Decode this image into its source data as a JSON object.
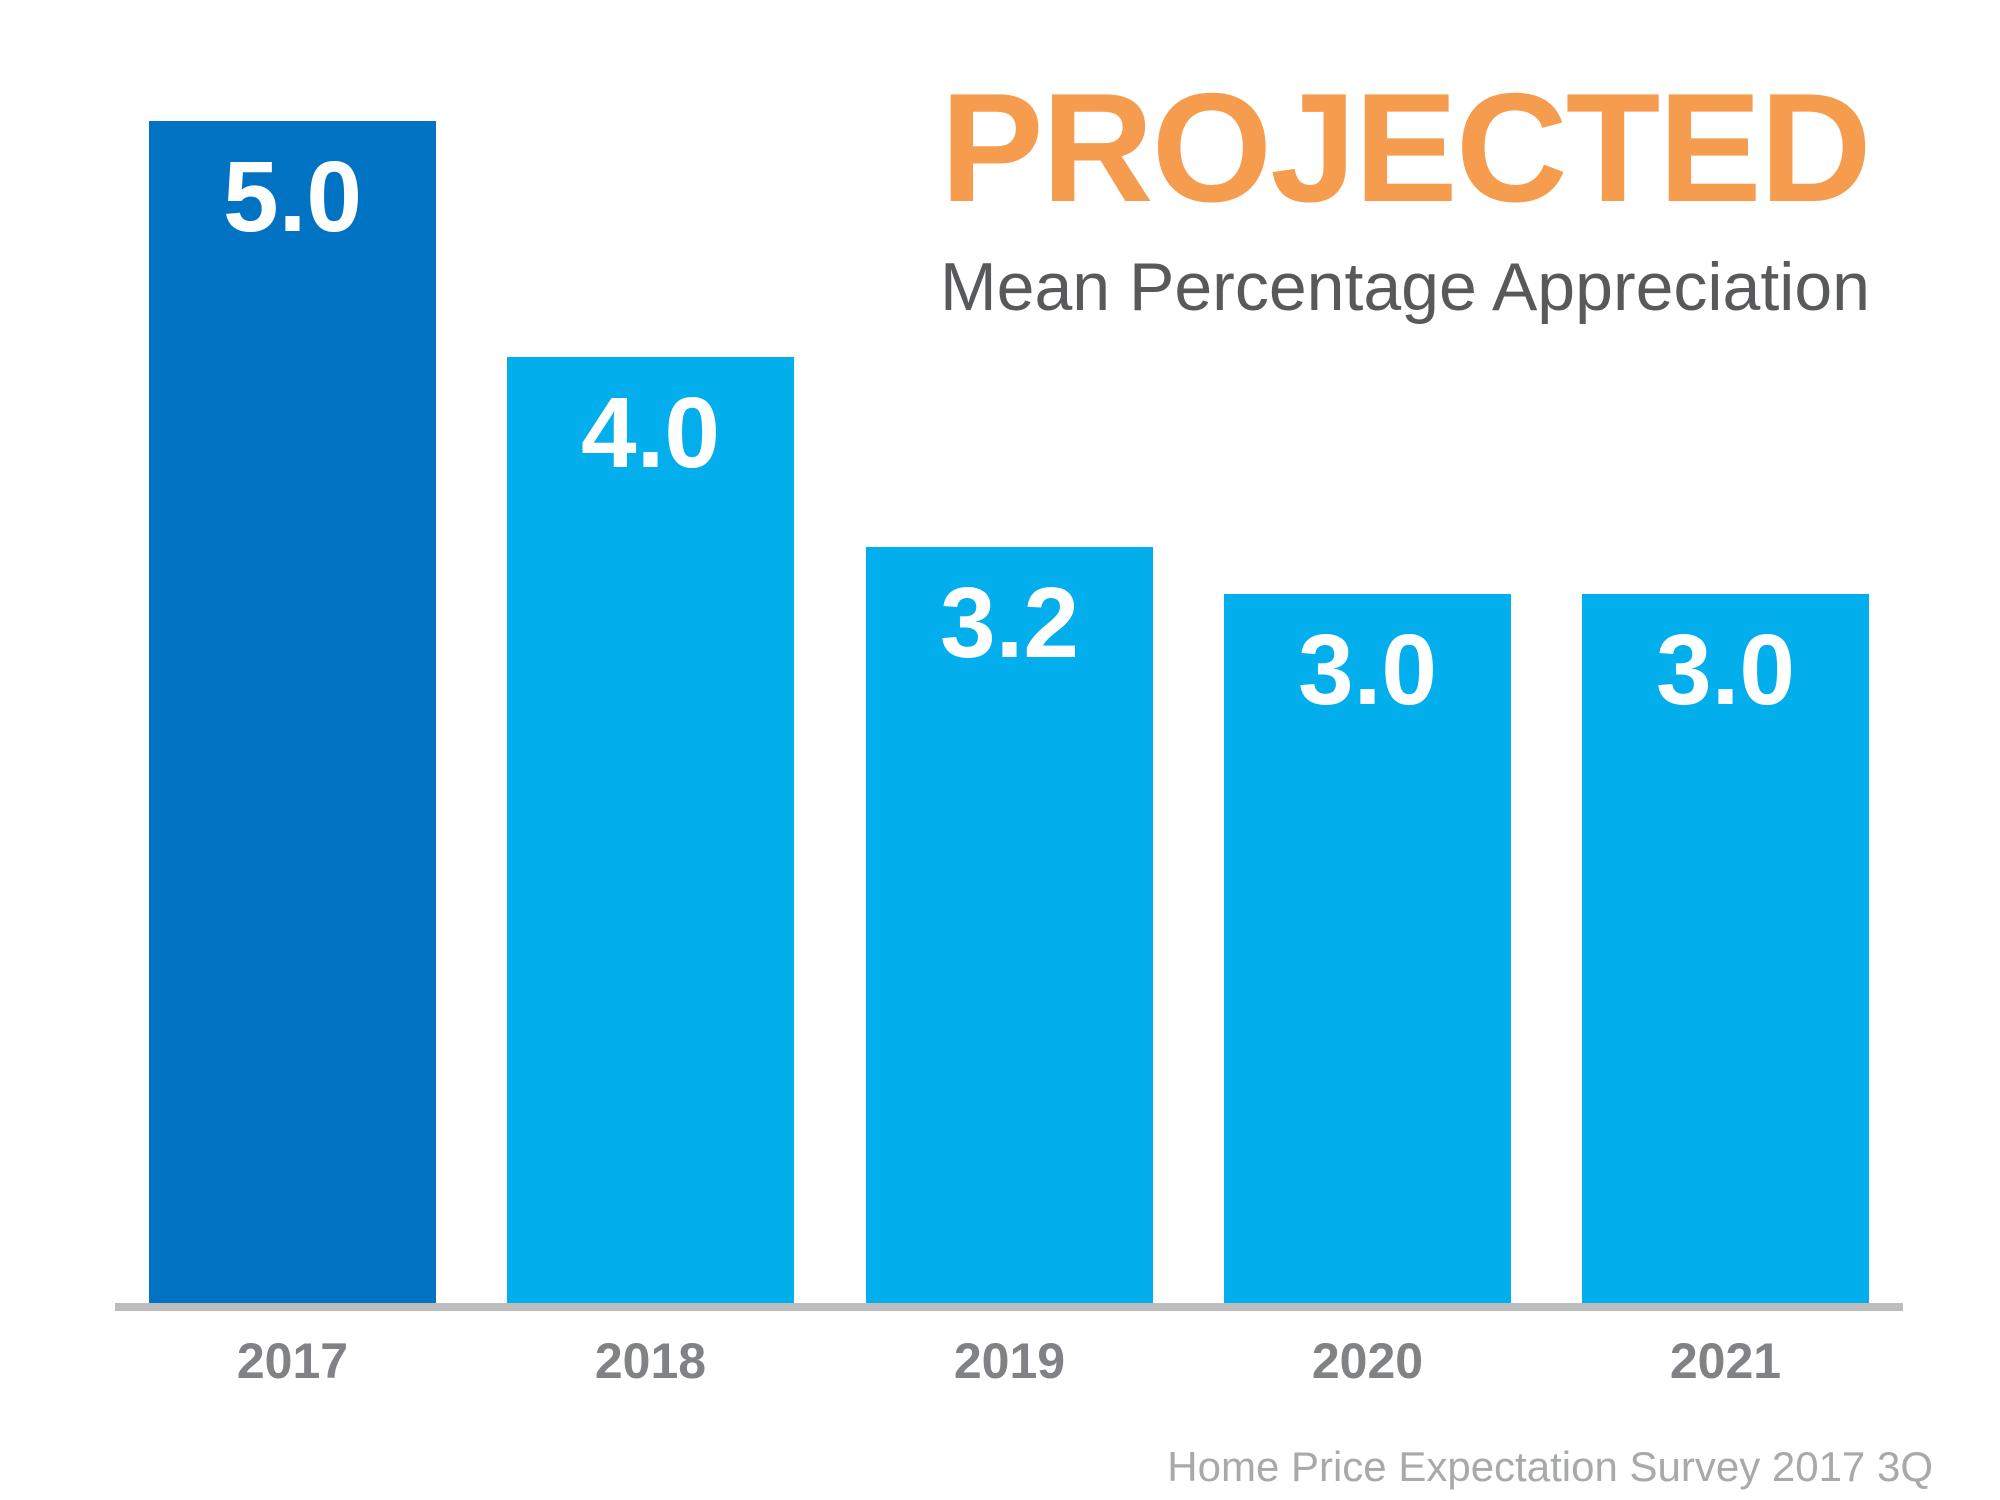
{
  "header": {
    "title": "PROJECTED",
    "subtitle": "Mean Percentage Appreciation",
    "title_color": "#F59C4F",
    "subtitle_color": "#58595B"
  },
  "chart_data": {
    "type": "bar",
    "title": "PROJECTED",
    "subtitle": "Mean Percentage Appreciation",
    "categories": [
      "2017",
      "2018",
      "2019",
      "2020",
      "2021"
    ],
    "values": [
      5.0,
      4.0,
      3.2,
      3.0,
      3.0
    ],
    "value_labels": [
      "5.0",
      "4.0",
      "3.2",
      "3.0",
      "3.0"
    ],
    "bar_colors": [
      "#0272C2",
      "#02AEEB",
      "#02AEEB",
      "#02AEEB",
      "#02AEEB"
    ],
    "value_label_color": "#FFFFFF",
    "category_label_color": "#808285",
    "axis_line_color": "#BBBDBF",
    "xlabel": "",
    "ylabel": "",
    "ylim": [
      0,
      5.5
    ],
    "grid": false,
    "legend_position": "none"
  },
  "footer": {
    "source": "Home Price Expectation Survey 2017 3Q",
    "color": "#A7A9AC"
  }
}
